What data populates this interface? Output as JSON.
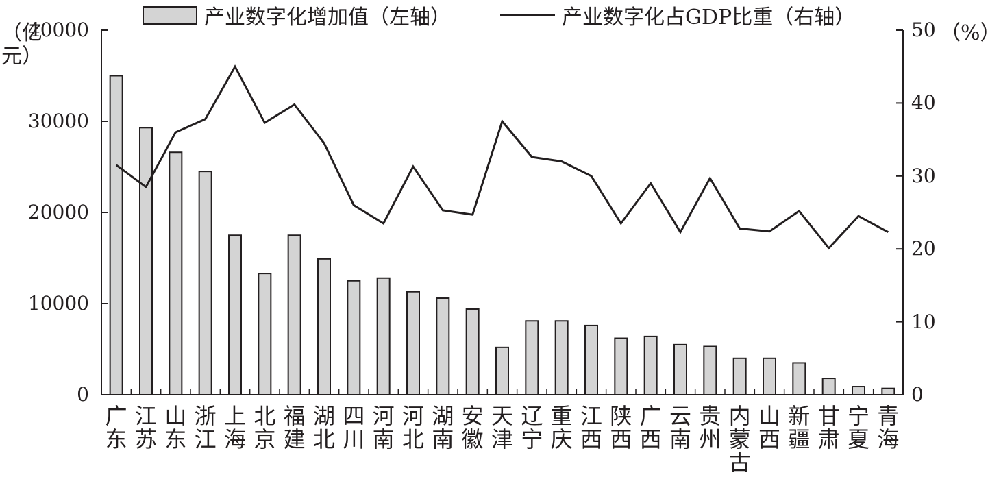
{
  "legend": {
    "bar_label": "产业数字化增加值（左轴）",
    "line_label": "产业数字化占GDP比重（右轴）"
  },
  "axes": {
    "left_unit": "（亿元）",
    "right_unit": "（%）"
  },
  "colors": {
    "bar_fill": "#d4d4d4",
    "stroke": "#231f20"
  },
  "chart_data": {
    "type": "bar",
    "categories": [
      "广东",
      "江苏",
      "山东",
      "浙江",
      "上海",
      "北京",
      "福建",
      "湖北",
      "四川",
      "河南",
      "河北",
      "湖南",
      "安徽",
      "天津",
      "辽宁",
      "重庆",
      "江西",
      "陕西",
      "广西",
      "云南",
      "贵州",
      "内蒙古",
      "山西",
      "新疆",
      "甘肃",
      "宁夏",
      "青海"
    ],
    "series": [
      {
        "name": "产业数字化增加值（左轴）",
        "type": "bar",
        "axis": "left",
        "values": [
          35000,
          29300,
          26600,
          24500,
          17500,
          13300,
          17500,
          14900,
          12500,
          12800,
          11300,
          10600,
          9400,
          5200,
          8100,
          8100,
          7600,
          6200,
          6400,
          5500,
          5300,
          4000,
          4000,
          3500,
          1800,
          900,
          700
        ]
      },
      {
        "name": "产业数字化占GDP比重（右轴）",
        "type": "line",
        "axis": "right",
        "values": [
          31.5,
          28.5,
          36.0,
          37.8,
          45.0,
          37.3,
          39.8,
          34.5,
          26.0,
          23.5,
          31.3,
          25.3,
          24.7,
          37.5,
          32.6,
          32.0,
          30.0,
          23.5,
          29.0,
          22.3,
          29.7,
          22.8,
          22.4,
          25.2,
          20.1,
          24.5,
          22.3
        ]
      }
    ],
    "left_axis": {
      "ylim": [
        0,
        40000
      ],
      "ticks": [
        "0",
        "10000",
        "20000",
        "30000",
        "40000"
      ]
    },
    "right_axis": {
      "ylim": [
        0,
        50
      ],
      "ticks": [
        "0",
        "10",
        "20",
        "30",
        "40",
        "50"
      ]
    },
    "grid": false,
    "legend_position": "top"
  }
}
